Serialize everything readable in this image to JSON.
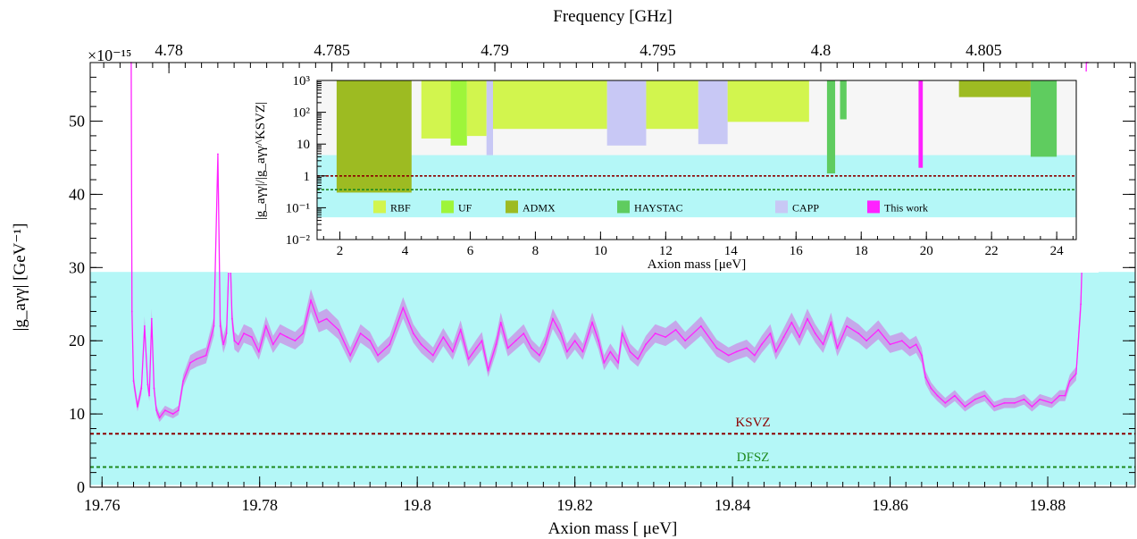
{
  "chart_data": [
    {
      "type": "line",
      "xlabel": "Axion mass [ μeV]",
      "ylabel": "|g_aγγ|  [GeV⁻¹]",
      "top_axis_label": "Frequency [GHz]",
      "y_multiplier": "×10⁻¹⁵",
      "xlim": [
        19.7585,
        19.8911
      ],
      "ylim": [
        0,
        58
      ],
      "x_ticks": [
        "19.76",
        "19.78",
        "19.8",
        "19.82",
        "19.84",
        "19.86",
        "19.88"
      ],
      "y_ticks": [
        "0",
        "10",
        "20",
        "30",
        "40",
        "50"
      ],
      "top_ticks": [
        "4.78",
        "4.785",
        "4.79",
        "4.795",
        "4.8",
        "4.805"
      ],
      "top_tick_values": [
        4.78,
        4.785,
        4.79,
        4.795,
        4.8,
        4.805
      ],
      "theory_band": {
        "y_low": 0.3,
        "y_high": 29.4,
        "color": "#b4f7f7"
      },
      "reference_lines": [
        {
          "name": "KSVZ",
          "y": 7.3,
          "color": "#8b0000"
        },
        {
          "name": "DFSZ",
          "y": 2.75,
          "color": "#1e8a1e"
        }
      ],
      "series": [
        {
          "color": "#ff22ff",
          "band_color": "#c89ae8",
          "x": [
            19.7637,
            19.7638,
            19.764,
            19.7645,
            19.765,
            19.7654,
            19.7658,
            19.766,
            19.7663,
            19.7666,
            19.7669,
            19.7673,
            19.768,
            19.769,
            19.7697,
            19.7703,
            19.7712,
            19.772,
            19.7732,
            19.7742,
            19.7747,
            19.775,
            19.7754,
            19.7758,
            19.7762,
            19.7765,
            19.7768,
            19.7773,
            19.778,
            19.779,
            19.7799,
            19.7808,
            19.7817,
            19.7826,
            19.7835,
            19.7845,
            19.7855,
            19.7865,
            19.7875,
            19.7885,
            19.79,
            19.7915,
            19.7928,
            19.794,
            19.795,
            19.7965,
            19.7982,
            19.7995,
            19.8005,
            19.802,
            19.8033,
            19.8045,
            19.8055,
            19.8065,
            19.8075,
            19.8082,
            19.809,
            19.81,
            19.8106,
            19.8115,
            19.8125,
            19.8135,
            19.8145,
            19.8155,
            19.8162,
            19.8172,
            19.8182,
            19.819,
            19.82,
            19.821,
            19.8222,
            19.823,
            19.8237,
            19.8245,
            19.8255,
            19.826,
            19.827,
            19.828,
            19.829,
            19.8302,
            19.8315,
            19.8328,
            19.834,
            19.836,
            19.838,
            19.8395,
            19.8405,
            19.8418,
            19.8428,
            19.8437,
            19.8448,
            19.8455,
            19.8465,
            19.8475,
            19.8485,
            19.8495,
            19.8505,
            19.8515,
            19.8525,
            19.8533,
            19.8545,
            19.856,
            19.857,
            19.8585,
            19.86,
            19.8615,
            19.8625,
            19.8633,
            19.864,
            19.8645,
            19.8652,
            19.866,
            19.867,
            19.8682,
            19.8695,
            19.8708,
            19.872,
            19.8732,
            19.8745,
            19.8758,
            19.877,
            19.878,
            19.879,
            19.8805,
            19.8815,
            19.8822,
            19.8828,
            19.8836,
            19.8842,
            19.8846,
            19.8849,
            19.8851
          ],
          "y": [
            58,
            24,
            14.5,
            11,
            13.5,
            22,
            14,
            12.5,
            23,
            13.5,
            10.5,
            9.5,
            10.5,
            10,
            10.5,
            14.5,
            17,
            17.5,
            18,
            22,
            45.5,
            22,
            19.5,
            21,
            34,
            23,
            20,
            19.5,
            21,
            20.5,
            18.5,
            22,
            19.5,
            21,
            20.5,
            20,
            21,
            25.5,
            22.5,
            23,
            21.5,
            18,
            21,
            20,
            18,
            19.5,
            24.5,
            21,
            19.5,
            18,
            20.5,
            18.5,
            21.5,
            17.5,
            19,
            20,
            16,
            19.5,
            22.5,
            19,
            20,
            21,
            19,
            18,
            19.5,
            23,
            21,
            18.5,
            20,
            18.5,
            22.5,
            20,
            17,
            18.5,
            17,
            21,
            18.5,
            17.5,
            19.5,
            21,
            20.5,
            21.5,
            20,
            22,
            19,
            18,
            18.5,
            19,
            18,
            19.5,
            21,
            18.5,
            20.5,
            22.5,
            20.5,
            23,
            21,
            19.5,
            22.5,
            19,
            22,
            21,
            20,
            21.5,
            19.5,
            20,
            19,
            19.5,
            18,
            15,
            13.5,
            12.5,
            11.5,
            12.5,
            11,
            12,
            12.5,
            11,
            11.5,
            11.5,
            12,
            11,
            12,
            11.5,
            12.5,
            12.5,
            14.5,
            15.5,
            25,
            40,
            58,
            58
          ]
        }
      ]
    },
    {
      "type": "area",
      "xlabel": "Axion mass [μeV]",
      "ylabel": "|g_aγγ|/|g_aγγ^KSVZ|",
      "y_scale": "log",
      "xlim": [
        1.3,
        24.6
      ],
      "ylim": [
        0.01,
        1000
      ],
      "x_ticks": [
        "2",
        "4",
        "6",
        "8",
        "10",
        "12",
        "14",
        "16",
        "18",
        "20",
        "22",
        "24"
      ],
      "y_ticks": [
        "10⁻²",
        "10⁻¹",
        "1",
        "10",
        "10²",
        "10³"
      ],
      "theory_band": {
        "y_low": 0.05,
        "y_high": 4.5,
        "color": "#b4f7f7"
      },
      "reference_lines": [
        {
          "name": "KSVZ",
          "y": 1,
          "color": "#8b0000"
        },
        {
          "name": "DFSZ",
          "y": 0.37,
          "color": "#1e8a1e"
        }
      ],
      "legend_position": "bottom",
      "legend": [
        {
          "name": "RBF",
          "color": "#d2f54e"
        },
        {
          "name": "UF",
          "color": "#9ef53a"
        },
        {
          "name": "ADMX",
          "color": "#9dbb22"
        },
        {
          "name": "HAYSTAC",
          "color": "#5fcc5f"
        },
        {
          "name": "CAPP",
          "color": "#c8c8f5"
        },
        {
          "name": "This work",
          "color": "#ff22ff"
        }
      ],
      "exclusion_regions": [
        {
          "name": "ADMX",
          "color": "#9dbb22",
          "x_range": [
            1.9,
            4.2
          ],
          "lower_limit": 0.3
        },
        {
          "name": "RBF",
          "color": "#d2f54e",
          "x_range": [
            4.5,
            5.4
          ],
          "lower_limit": 15
        },
        {
          "name": "UF",
          "color": "#9ef53a",
          "x_range": [
            5.4,
            5.9
          ],
          "lower_limit": 9
        },
        {
          "name": "RBF",
          "color": "#d2f54e",
          "x_range": [
            5.9,
            6.5
          ],
          "lower_limit": 18
        },
        {
          "name": "CAPP",
          "color": "#c8c8f5",
          "x_range": [
            6.5,
            6.7
          ],
          "lower_limit": 4.5
        },
        {
          "name": "RBF",
          "color": "#d2f54e",
          "x_range": [
            6.7,
            10.2
          ],
          "lower_limit": 30
        },
        {
          "name": "CAPP",
          "color": "#c8c8f5",
          "x_range": [
            10.2,
            11.4
          ],
          "lower_limit": 9
        },
        {
          "name": "RBF",
          "color": "#d2f54e",
          "x_range": [
            11.4,
            13.0
          ],
          "lower_limit": 30
        },
        {
          "name": "CAPP",
          "color": "#c8c8f5",
          "x_range": [
            13.0,
            13.9
          ],
          "lower_limit": 10
        },
        {
          "name": "RBF",
          "color": "#d2f54e",
          "x_range": [
            13.9,
            16.4
          ],
          "lower_limit": 50
        },
        {
          "name": "HAYSTAC",
          "color": "#5fcc5f",
          "x_range": [
            16.95,
            17.2
          ],
          "lower_limit": 1.2
        },
        {
          "name": "HAYSTAC",
          "color": "#5fcc5f",
          "x_range": [
            17.35,
            17.55
          ],
          "lower_limit": 60
        },
        {
          "name": "This work",
          "color": "#ff22ff",
          "x_range": [
            19.76,
            19.89
          ],
          "lower_limit": 1.8
        },
        {
          "name": "ADMX",
          "color": "#9dbb22",
          "x_range": [
            21.0,
            23.2
          ],
          "lower_limit": 300
        },
        {
          "name": "HAYSTAC",
          "color": "#5fcc5f",
          "x_range": [
            23.2,
            24.0
          ],
          "lower_limit": 4
        }
      ]
    }
  ]
}
